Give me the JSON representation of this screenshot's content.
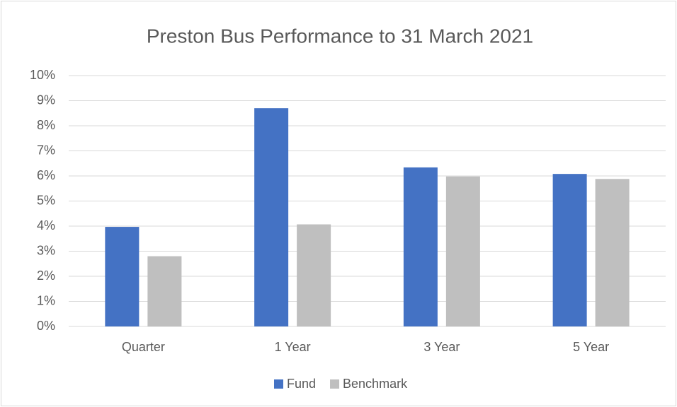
{
  "chart_data": {
    "type": "bar",
    "title": "Preston Bus Performance to 31 March 2021",
    "categories": [
      "Quarter",
      "1 Year",
      "3 Year",
      "5 Year"
    ],
    "series": [
      {
        "name": "Fund",
        "color": "#4472c4",
        "values": [
          3.97,
          8.7,
          6.34,
          6.08
        ]
      },
      {
        "name": "Benchmark",
        "color": "#bfbfbf",
        "values": [
          2.8,
          4.07,
          5.98,
          5.88
        ]
      }
    ],
    "ylim": [
      0,
      10
    ],
    "yticks": [
      {
        "value": 0,
        "label": "0%"
      },
      {
        "value": 1,
        "label": "1%"
      },
      {
        "value": 2,
        "label": "2%"
      },
      {
        "value": 3,
        "label": "3%"
      },
      {
        "value": 4,
        "label": "4%"
      },
      {
        "value": 5,
        "label": "5%"
      },
      {
        "value": 6,
        "label": "6%"
      },
      {
        "value": 7,
        "label": "7%"
      },
      {
        "value": 8,
        "label": "8%"
      },
      {
        "value": 9,
        "label": "9%"
      },
      {
        "value": 10,
        "label": "10%"
      }
    ],
    "grid": true,
    "legend": "bottom"
  }
}
